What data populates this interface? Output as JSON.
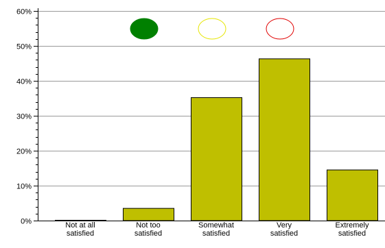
{
  "chart_data": {
    "type": "bar",
    "categories": [
      [
        "Not at all",
        "satisfied"
      ],
      [
        "Not too",
        "satisfied"
      ],
      [
        "Somewhat",
        "satisfied"
      ],
      [
        "Very",
        "satisfied"
      ],
      [
        "Extremely",
        "satisfied"
      ]
    ],
    "values": [
      0.2,
      3.6,
      35.3,
      46.4,
      14.6
    ],
    "unit": "%",
    "ylim": [
      0,
      60
    ],
    "y_ticks": [
      "0%",
      "10%",
      "20%",
      "30%",
      "40%",
      "50%",
      "60%"
    ],
    "grid": true,
    "legend": "none",
    "title": "",
    "xlabel": "",
    "ylabel": "",
    "colors": {
      "bar_fill": "#BFBF00",
      "bar_stroke": "#000000",
      "grid": "#999999",
      "axis": "#000000"
    },
    "markers": [
      {
        "name": "green-circle-icon",
        "fill": "#008000",
        "stroke": "#008000",
        "category_index": 1
      },
      {
        "name": "yellow-circle-icon",
        "fill": "#FFFFFF",
        "stroke": "#E6E600",
        "category_index": 2
      },
      {
        "name": "red-circle-icon",
        "fill": "#FFFFFF",
        "stroke": "#E00000",
        "category_index": 3
      }
    ]
  }
}
